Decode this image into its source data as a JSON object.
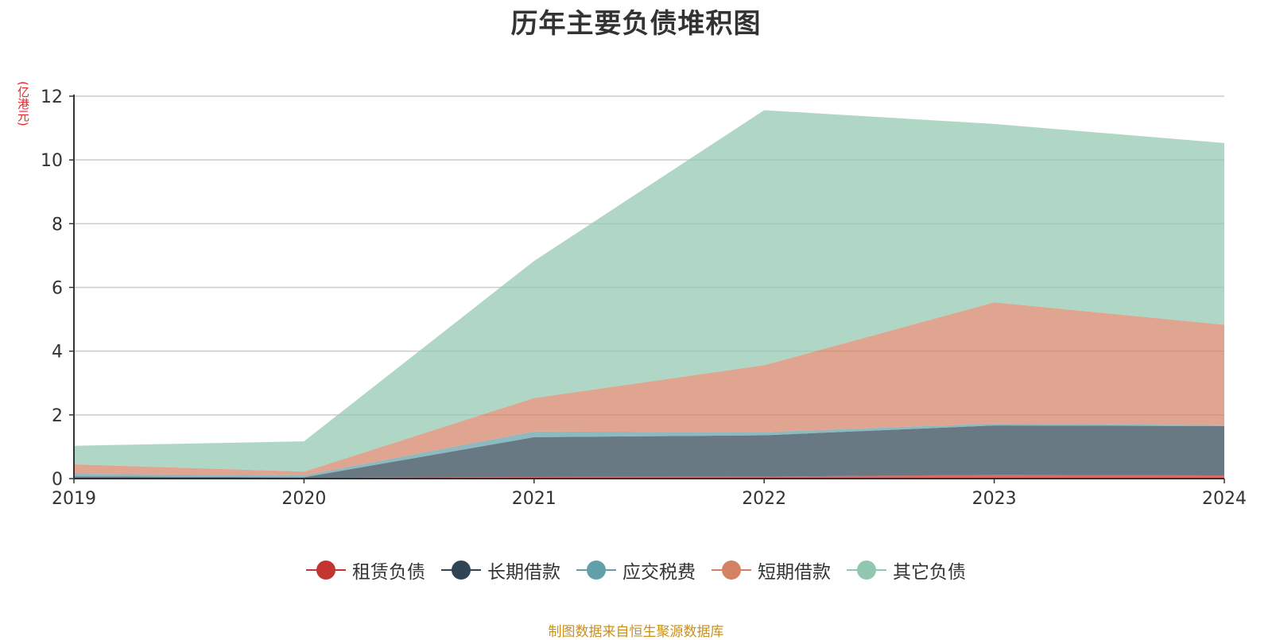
{
  "chart_data": {
    "type": "area",
    "stacked": true,
    "title": "历年主要负债堆积图",
    "unit_label": "(亿港元)",
    "categories": [
      "2019",
      "2020",
      "2021",
      "2022",
      "2023",
      "2024"
    ],
    "ylim": [
      0,
      12
    ],
    "yticks": [
      0,
      2,
      4,
      6,
      8,
      10,
      12
    ],
    "grid": true,
    "legend_position": "bottom",
    "series": [
      {
        "name": "租赁负债",
        "color": "#c23531",
        "values": [
          0.02,
          0.02,
          0.05,
          0.06,
          0.12,
          0.1
        ]
      },
      {
        "name": "长期借款",
        "color": "#2f4554",
        "values": [
          0.05,
          0.02,
          1.25,
          1.3,
          1.55,
          1.55
        ]
      },
      {
        "name": "应交税费",
        "color": "#61a0a8",
        "values": [
          0.08,
          0.06,
          0.18,
          0.1,
          0.06,
          0.03
        ]
      },
      {
        "name": "短期借款",
        "color": "#d48265",
        "values": [
          0.3,
          0.12,
          1.05,
          2.1,
          3.8,
          3.15
        ]
      },
      {
        "name": "其它负债",
        "color": "#91c7ae",
        "values": [
          0.58,
          0.95,
          4.3,
          8.0,
          5.6,
          5.7
        ]
      }
    ]
  },
  "source_note": "制图数据来自恒生聚源数据库"
}
